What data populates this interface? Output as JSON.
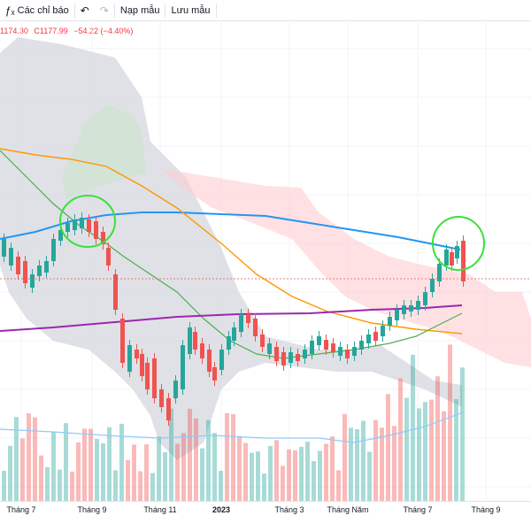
{
  "toolbar": {
    "indicators_label": "Các chỉ báo",
    "templates_label": "Nạp mẫu",
    "save_label": "Lưu mẫu"
  },
  "legend": {
    "low": "1174.30",
    "close": "C1177.99",
    "change": "−54.22 (−4.40%)",
    "color": "#f23645"
  },
  "colors": {
    "up": "#26a69a",
    "down": "#ef5350",
    "sma_blue": "#2196f3",
    "sma_orange": "#ff9800",
    "sma_green": "#4caf50",
    "sma_purple": "#9c27b0",
    "cloud_gray": "#d1d4dc",
    "cloud_red": "#ffcdd2",
    "cloud_green": "#c8e6c9",
    "volume_ma": "#90caf9",
    "highlight": "#3ae03a"
  },
  "timeaxis": {
    "ticks": [
      "Tháng 7",
      "Tháng 9",
      "Tháng 11",
      "2023",
      "Tháng 3",
      "Tháng Năm",
      "Tháng 7",
      "Tháng 9"
    ]
  },
  "chart_data": {
    "type": "candlestick",
    "symbol_close": 1177.99,
    "change": -54.22,
    "change_pct": -4.4,
    "indicators": [
      "Ichimoku cloud",
      "SMA (blue)",
      "SMA (orange)",
      "SMA (green)",
      "SMA (purple)",
      "Volume",
      "Volume MA"
    ],
    "annotations": [
      "circle near Tháng 9 2022",
      "circle near Tháng 8 2023"
    ]
  }
}
